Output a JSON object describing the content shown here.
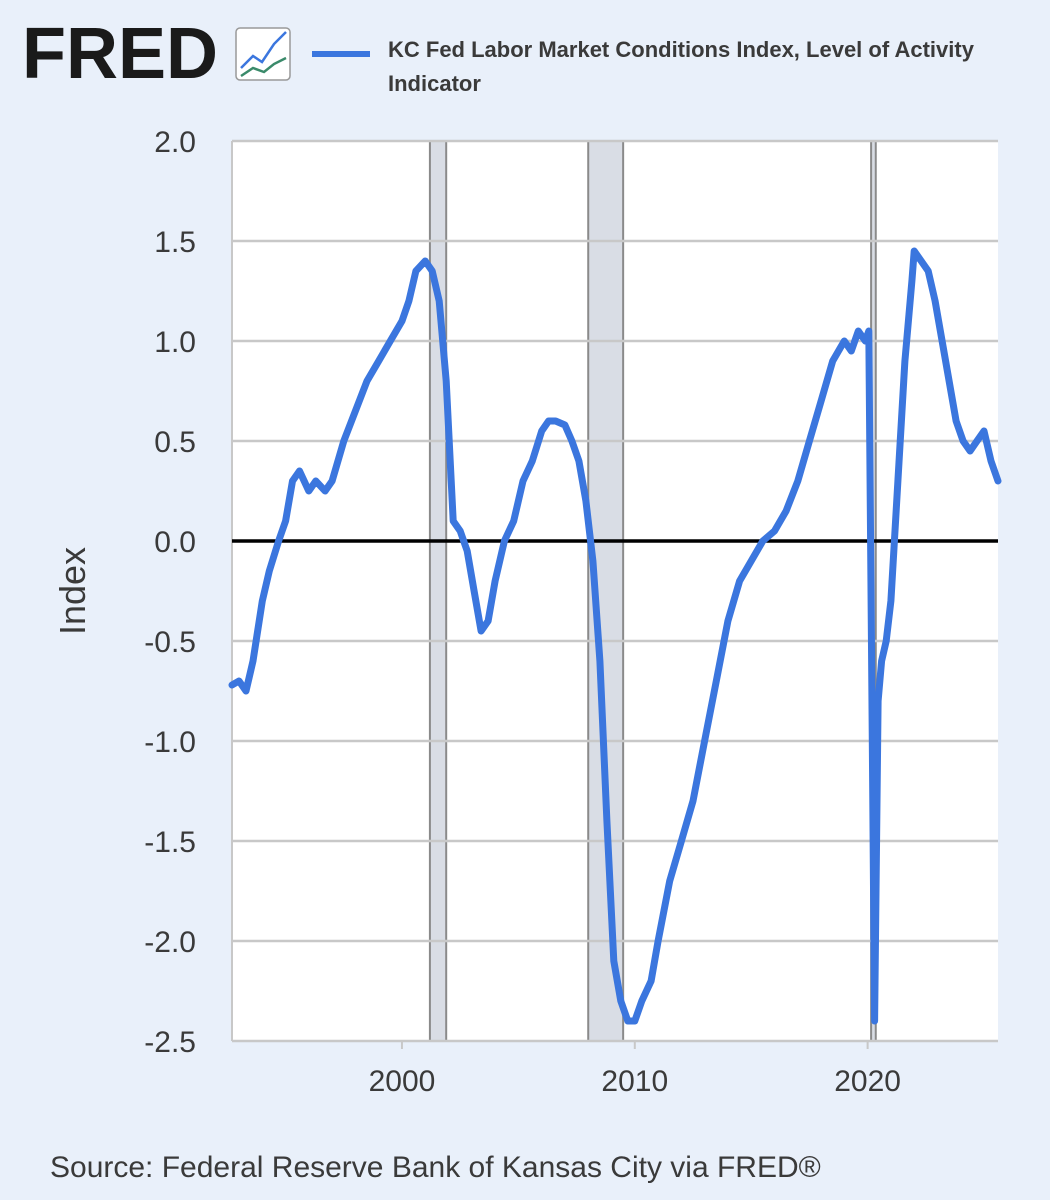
{
  "logo": {
    "text": "FRED",
    "icon": "line-chart-icon"
  },
  "colors": {
    "background": "#e9f0fa",
    "plot_bg": "#ffffff",
    "grid": "#c8c8c8",
    "series": "#3b76de",
    "recession": "#d9dde5",
    "recession_edge": "#8a8a8a",
    "zero_line": "#000000",
    "text": "#3a3a3a"
  },
  "source": "Source: Federal Reserve Bank of Kansas City via FRED®",
  "chart_data": {
    "type": "line",
    "ylabel": "Index",
    "xlabel": "",
    "ylim": [
      -2.5,
      2.0
    ],
    "xlim": [
      1992.7,
      2025.6
    ],
    "yticks": [
      "2.0",
      "1.5",
      "1.0",
      "0.5",
      "0.0",
      "-0.5",
      "-1.0",
      "-1.5",
      "-2.0",
      "-2.5"
    ],
    "ytick_values": [
      2.0,
      1.5,
      1.0,
      0.5,
      0.0,
      -0.5,
      -1.0,
      -1.5,
      -2.0,
      -2.5
    ],
    "xticks": [
      "2000",
      "2010",
      "2020"
    ],
    "xtick_values": [
      2000,
      2010,
      2020
    ],
    "grid": true,
    "zero_line": true,
    "recessions": [
      [
        2001.2,
        2001.9
      ],
      [
        2008.0,
        2009.5
      ],
      [
        2020.15,
        2020.35
      ]
    ],
    "series": [
      {
        "name": "KC Fed Labor Market Conditions Index, Level of Activity Indicator",
        "line1": "KC Fed Labor Market Conditions Index, Level of Activity",
        "line2": "Indicator",
        "x": [
          1992.7,
          1993.0,
          1993.3,
          1993.6,
          1994.0,
          1994.3,
          1994.7,
          1995.0,
          1995.3,
          1995.6,
          1996.0,
          1996.3,
          1996.7,
          1997.0,
          1997.5,
          1998.0,
          1998.5,
          1999.0,
          1999.5,
          2000.0,
          2000.3,
          2000.6,
          2001.0,
          2001.3,
          2001.6,
          2001.9,
          2002.2,
          2002.5,
          2002.8,
          2003.1,
          2003.4,
          2003.7,
          2004.0,
          2004.4,
          2004.8,
          2005.2,
          2005.6,
          2006.0,
          2006.3,
          2006.6,
          2007.0,
          2007.3,
          2007.6,
          2007.9,
          2008.2,
          2008.5,
          2008.8,
          2009.1,
          2009.4,
          2009.7,
          2010.0,
          2010.3,
          2010.7,
          2011.0,
          2011.5,
          2012.0,
          2012.5,
          2013.0,
          2013.5,
          2014.0,
          2014.5,
          2015.0,
          2015.5,
          2016.0,
          2016.5,
          2017.0,
          2017.5,
          2018.0,
          2018.5,
          2019.0,
          2019.3,
          2019.6,
          2019.9,
          2020.05,
          2020.2,
          2020.3,
          2020.45,
          2020.6,
          2020.8,
          2021.0,
          2021.3,
          2021.6,
          2021.9,
          2022.0,
          2022.3,
          2022.6,
          2022.9,
          2023.2,
          2023.5,
          2023.8,
          2024.1,
          2024.4,
          2024.7,
          2025.0,
          2025.3,
          2025.6
        ],
        "values": [
          -0.72,
          -0.7,
          -0.75,
          -0.6,
          -0.3,
          -0.15,
          0.0,
          0.1,
          0.3,
          0.35,
          0.25,
          0.3,
          0.25,
          0.3,
          0.5,
          0.65,
          0.8,
          0.9,
          1.0,
          1.1,
          1.2,
          1.35,
          1.4,
          1.35,
          1.2,
          0.8,
          0.1,
          0.05,
          -0.05,
          -0.25,
          -0.45,
          -0.4,
          -0.2,
          0.0,
          0.1,
          0.3,
          0.4,
          0.55,
          0.6,
          0.6,
          0.58,
          0.5,
          0.4,
          0.2,
          -0.1,
          -0.6,
          -1.4,
          -2.1,
          -2.3,
          -2.4,
          -2.4,
          -2.3,
          -2.2,
          -2.0,
          -1.7,
          -1.5,
          -1.3,
          -1.0,
          -0.7,
          -0.4,
          -0.2,
          -0.1,
          0.0,
          0.05,
          0.15,
          0.3,
          0.5,
          0.7,
          0.9,
          1.0,
          0.95,
          1.05,
          1.0,
          1.05,
          -1.0,
          -2.4,
          -0.8,
          -0.6,
          -0.5,
          -0.3,
          0.3,
          0.9,
          1.3,
          1.45,
          1.4,
          1.35,
          1.2,
          1.0,
          0.8,
          0.6,
          0.5,
          0.45,
          0.5,
          0.55,
          0.4,
          0.3
        ]
      }
    ]
  }
}
